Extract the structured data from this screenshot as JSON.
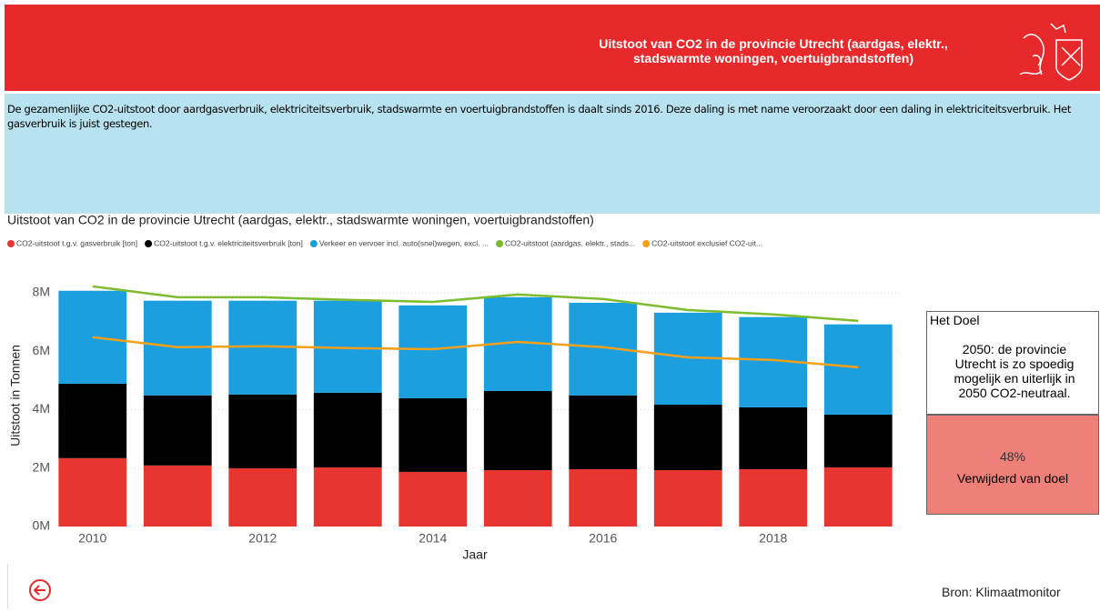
{
  "header": {
    "title": "Uitstoot van CO2 in de provincie Utrecht (aardgas, elektr., stadswarmte woningen, voertuigbrandstoffen)"
  },
  "description": "De gezamenlijke CO2-uitstoot door aardgasverbruik, elektriciteitsverbruik, stadswarmte en voertuigbrandstoffen is daalt sinds 2016. Deze daling is met name veroorzaakt door een daling in elektriciteitsverbruik. Het gasverbruik is juist gestegen.",
  "chart_data": {
    "type": "bar",
    "stacked": true,
    "title": "Uitstoot van CO2 in de provincie Utrecht (aardgas, elektr., stadswarmte woningen, voertuigbrandstoffen)",
    "x_label": "Jaar",
    "y_label": "Uitstoot in Tonnen",
    "x": [
      2010,
      2011,
      2012,
      2013,
      2014,
      2015,
      2016,
      2017,
      2018,
      2019
    ],
    "xlim": [
      2009.5,
      2019.5
    ],
    "xticks": [
      2010,
      2012,
      2014,
      2016,
      2018
    ],
    "ylim": [
      0,
      8000000
    ],
    "yticks": [
      {
        "value": 0,
        "label": "0M"
      },
      {
        "value": 2000000,
        "label": "2M"
      },
      {
        "value": 4000000,
        "label": "4M"
      },
      {
        "value": 6000000,
        "label": "6M"
      },
      {
        "value": 8000000,
        "label": "8M"
      }
    ],
    "grid": true,
    "series": [
      {
        "name": "CO2-uitstoot t.g.v. gasverbruik [ton]",
        "type": "bar",
        "color": "#e8352f",
        "values": [
          2340000,
          2090000,
          1990000,
          2020000,
          1870000,
          1930000,
          1960000,
          1930000,
          1960000,
          2020000
        ]
      },
      {
        "name": "CO2-uitstoot t.g.v. elektriciteitsverbruik [ton]",
        "type": "bar",
        "color": "#000000",
        "values": [
          2550000,
          2400000,
          2530000,
          2560000,
          2520000,
          2710000,
          2530000,
          2240000,
          2120000,
          1810000
        ]
      },
      {
        "name": "Verkeer en vervoer incl. auto(snel)wegen, excl. ...",
        "type": "bar",
        "color": "#1b9fde",
        "values": [
          3180000,
          3240000,
          3210000,
          3150000,
          3180000,
          3210000,
          3170000,
          3150000,
          3090000,
          3090000
        ]
      },
      {
        "name": "CO2-uitstoot (aardgas, elektr., stads...",
        "type": "line",
        "color": "#7dbb2f",
        "values": [
          8220000,
          7850000,
          7850000,
          7760000,
          7690000,
          7940000,
          7790000,
          7410000,
          7260000,
          7040000
        ]
      },
      {
        "name": "CO2-uitstoot exclusief CO2-uit...",
        "type": "line",
        "color": "#f5a01a",
        "values": [
          6480000,
          6140000,
          6170000,
          6110000,
          6070000,
          6320000,
          6140000,
          5790000,
          5700000,
          5450000
        ]
      }
    ]
  },
  "goal": {
    "title": "Het Doel",
    "text": "2050: de provincie Utrecht is zo spoedig mogelijk en uiterlijk in 2050 CO2-neutraal.",
    "value": "48%",
    "label": "Verwijderd van doel"
  },
  "footer": {
    "source": "Bron: Klimaatmonitor"
  }
}
